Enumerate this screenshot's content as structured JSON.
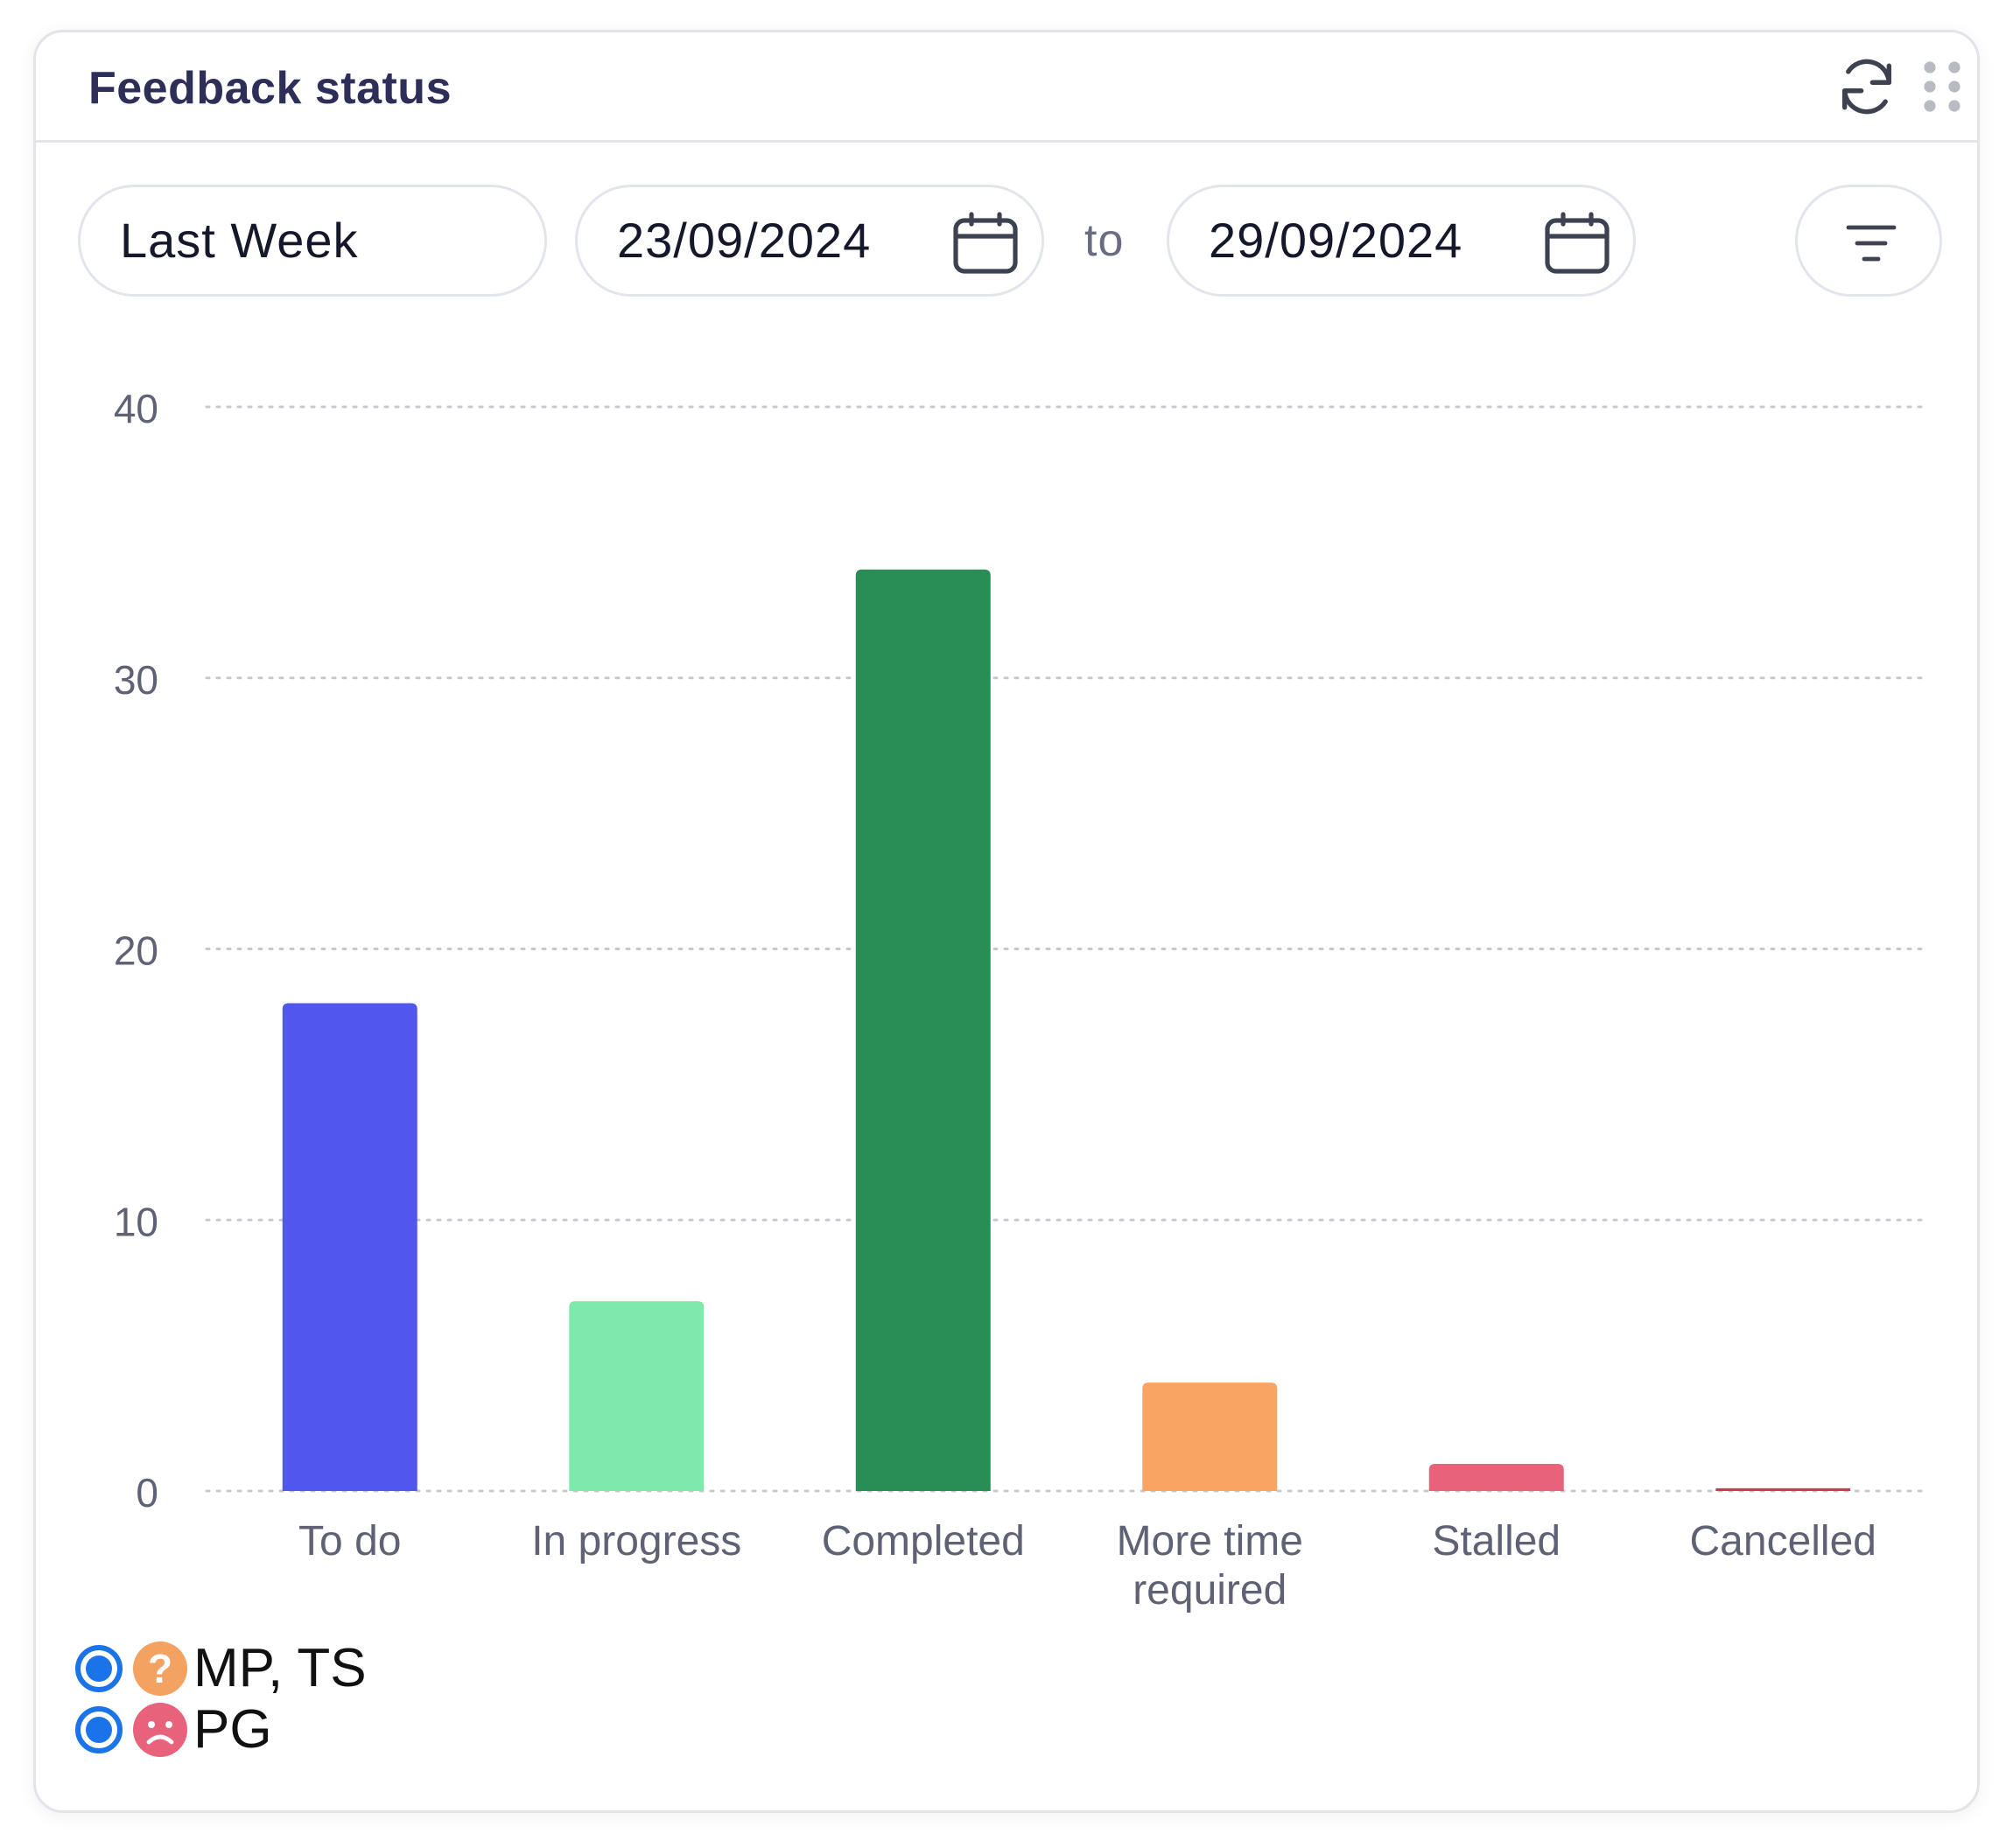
{
  "widget": {
    "title": "Feedback status",
    "refresh_icon": "refresh-icon",
    "drag_icon": "drag-handle-icon"
  },
  "filters": {
    "period": "Last Week",
    "start_date": "23/09/2024",
    "separator": "to",
    "end_date": "29/09/2024",
    "calendar_icon": "calendar-icon",
    "filter_icon": "filter-lines-icon"
  },
  "chart_data": {
    "type": "bar",
    "categories": [
      "To do",
      "In progress",
      "Completed",
      "More time required",
      "Stalled",
      "Cancelled"
    ],
    "values": [
      18,
      7,
      34,
      4,
      1,
      0.1
    ],
    "colors": [
      "#5157ee",
      "#7fe8ad",
      "#298d56",
      "#f9a462",
      "#e8627c",
      "#d9344d"
    ],
    "yticks": [
      0,
      10,
      20,
      30,
      40
    ],
    "ylim": [
      0,
      40
    ],
    "grid": "dotted horizontal",
    "title": "",
    "xlabel": "",
    "ylabel": ""
  },
  "legend": [
    {
      "label": "MP, TS",
      "icon": "question-emoji-icon",
      "color": "#f4a261",
      "selected": true
    },
    {
      "label": "PG",
      "icon": "sad-face-emoji-icon",
      "color": "#e8627c",
      "selected": true
    }
  ]
}
